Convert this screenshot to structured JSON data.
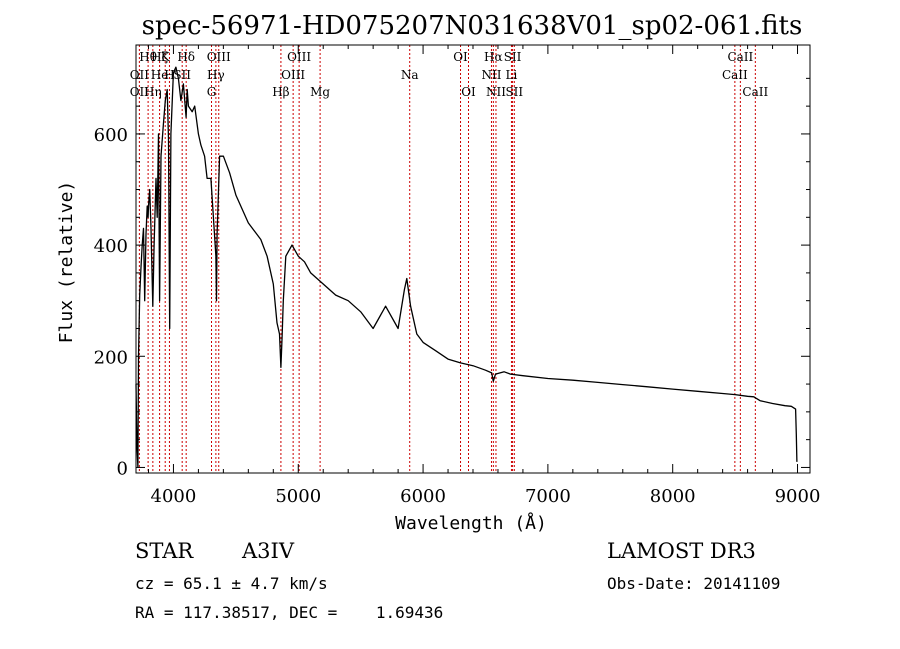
{
  "chart_data": {
    "type": "line",
    "title": "spec-56971-HD075207N031638V01_sp02-061.fits",
    "xlabel": "Wavelength (Å)",
    "ylabel": "Flux (relative)",
    "xlim": [
      3700,
      9100
    ],
    "ylim": [
      -10,
      760
    ],
    "xticks": [
      4000,
      5000,
      6000,
      7000,
      8000,
      9000
    ],
    "yticks": [
      0,
      200,
      400,
      600
    ],
    "series": [
      {
        "name": "spectrum",
        "x": [
          3700,
          3705,
          3710,
          3715,
          3720,
          3730,
          3740,
          3750,
          3760,
          3770,
          3780,
          3790,
          3797,
          3800,
          3810,
          3820,
          3835,
          3845,
          3860,
          3870,
          3880,
          3889,
          3900,
          3920,
          3935,
          3950,
          3960,
          3970,
          3980,
          4000,
          4020,
          4040,
          4060,
          4080,
          4101,
          4110,
          4120,
          4150,
          4170,
          4200,
          4220,
          4250,
          4270,
          4300,
          4320,
          4340,
          4345,
          4350,
          4370,
          4400,
          4450,
          4500,
          4600,
          4700,
          4750,
          4800,
          4830,
          4850,
          4861,
          4870,
          4880,
          4900,
          4950,
          5000,
          5050,
          5100,
          5150,
          5200,
          5300,
          5400,
          5500,
          5600,
          5700,
          5800,
          5850,
          5870,
          5900,
          5950,
          6000,
          6100,
          6200,
          6300,
          6400,
          6500,
          6550,
          6563,
          6580,
          6650,
          6700,
          6800,
          7000,
          7200,
          7400,
          7600,
          7800,
          8000,
          8200,
          8400,
          8500,
          8600,
          8650,
          8700,
          8800,
          8900,
          8950,
          8985,
          8990,
          8995
        ],
        "y": [
          150,
          80,
          30,
          0,
          200,
          310,
          360,
          400,
          430,
          300,
          420,
          470,
          450,
          470,
          500,
          430,
          290,
          400,
          520,
          450,
          600,
          300,
          560,
          620,
          660,
          680,
          590,
          250,
          600,
          710,
          720,
          700,
          660,
          690,
          630,
          680,
          650,
          640,
          650,
          600,
          580,
          560,
          520,
          520,
          450,
          380,
          300,
          420,
          560,
          560,
          530,
          490,
          440,
          410,
          380,
          330,
          260,
          240,
          180,
          230,
          300,
          380,
          400,
          380,
          370,
          350,
          340,
          330,
          310,
          300,
          280,
          250,
          290,
          250,
          320,
          340,
          290,
          240,
          225,
          210,
          195,
          188,
          183,
          175,
          170,
          155,
          168,
          172,
          168,
          165,
          160,
          157,
          153,
          149,
          145,
          141,
          137,
          133,
          131,
          128,
          127,
          120,
          115,
          111,
          110,
          105,
          60,
          10
        ]
      }
    ],
    "lines": [
      {
        "name": "OII",
        "wave": 3727,
        "row": 2
      },
      {
        "name": "OII",
        "wave": 3727,
        "row": 3
      },
      {
        "name": "Hθ",
        "wave": 3797,
        "row": 1
      },
      {
        "name": "Hη",
        "wave": 3835,
        "row": 3
      },
      {
        "name": "Hζ",
        "wave": 3889,
        "row": 1
      },
      {
        "name": "He",
        "wave": 3889,
        "row": 2
      },
      {
        "name": "K",
        "wave": 3934,
        "row": 1
      },
      {
        "name": "H",
        "wave": 3968,
        "row": 2
      },
      {
        "name": "Hδ",
        "wave": 4102,
        "row": 1
      },
      {
        "name": "SII",
        "wave": 4070,
        "row": 2
      },
      {
        "name": "OIII",
        "wave": 4363,
        "row": 1
      },
      {
        "name": "Hγ",
        "wave": 4340,
        "row": 2
      },
      {
        "name": "G",
        "wave": 4305,
        "row": 3
      },
      {
        "name": "Hβ",
        "wave": 4861,
        "row": 3
      },
      {
        "name": "OIII",
        "wave": 4959,
        "row": 2
      },
      {
        "name": "OIII",
        "wave": 5007,
        "row": 1
      },
      {
        "name": "Mg",
        "wave": 5175,
        "row": 3
      },
      {
        "name": "Na",
        "wave": 5893,
        "row": 2
      },
      {
        "name": "OI",
        "wave": 6300,
        "row": 1
      },
      {
        "name": "OI",
        "wave": 6364,
        "row": 3
      },
      {
        "name": "Hα",
        "wave": 6563,
        "row": 1
      },
      {
        "name": "NII",
        "wave": 6548,
        "row": 2
      },
      {
        "name": "NII",
        "wave": 6584,
        "row": 3
      },
      {
        "name": "SII",
        "wave": 6717,
        "row": 1
      },
      {
        "name": "Li",
        "wave": 6708,
        "row": 2
      },
      {
        "name": "SII",
        "wave": 6731,
        "row": 3
      },
      {
        "name": "CaII",
        "wave": 8542,
        "row": 1
      },
      {
        "name": "CaII",
        "wave": 8498,
        "row": 2
      },
      {
        "name": "CaII",
        "wave": 8662,
        "row": 3
      }
    ]
  },
  "info": {
    "object_class": "STAR",
    "subclass": "A3IV",
    "cz": "cz = 65.1 ± 4.7 km/s",
    "coords": "RA = 117.38517, DEC =    1.69436",
    "survey": "LAMOST DR3",
    "obs_date": "Obs-Date: 20141109"
  },
  "colors": {
    "line": "#000000",
    "marker": "#cc0000"
  }
}
